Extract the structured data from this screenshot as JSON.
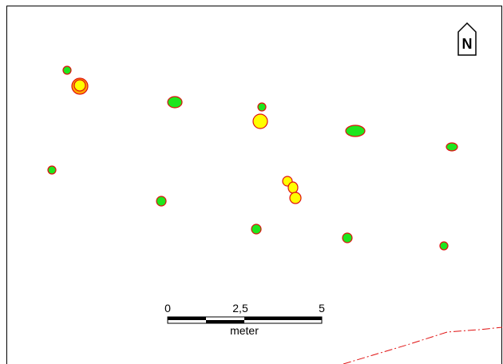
{
  "north_arrow": {
    "label": "N"
  },
  "scale_bar": {
    "ticks": [
      "0",
      "2,5",
      "5"
    ],
    "unit": "meter"
  }
}
